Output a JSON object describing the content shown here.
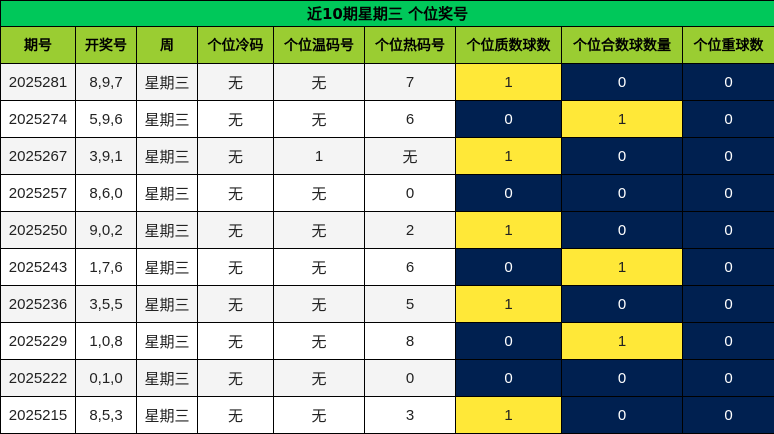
{
  "title": "近10期星期三 个位奖号",
  "headers": [
    "期号",
    "开奖号",
    "周",
    "个位冷码",
    "个位温码号",
    "个位热码号",
    "个位质数球数",
    "个位合数球数量",
    "个位重球数"
  ],
  "colors": {
    "title_bg": "#00c85a",
    "header_bg": "#9acd32",
    "highlight": "#ffe838",
    "dark": "#002050"
  },
  "rows": [
    {
      "cells": [
        "2025281",
        "8,9,7",
        "星期三",
        "无",
        "无",
        "7",
        "1",
        "0",
        "0"
      ],
      "hl": [
        1,
        0,
        0
      ]
    },
    {
      "cells": [
        "2025274",
        "5,9,6",
        "星期三",
        "无",
        "无",
        "6",
        "0",
        "1",
        "0"
      ],
      "hl": [
        0,
        1,
        0
      ]
    },
    {
      "cells": [
        "2025267",
        "3,9,1",
        "星期三",
        "无",
        "1",
        "无",
        "1",
        "0",
        "0"
      ],
      "hl": [
        1,
        0,
        0
      ]
    },
    {
      "cells": [
        "2025257",
        "8,6,0",
        "星期三",
        "无",
        "无",
        "0",
        "0",
        "0",
        "0"
      ],
      "hl": [
        0,
        0,
        0
      ]
    },
    {
      "cells": [
        "2025250",
        "9,0,2",
        "星期三",
        "无",
        "无",
        "2",
        "1",
        "0",
        "0"
      ],
      "hl": [
        1,
        0,
        0
      ]
    },
    {
      "cells": [
        "2025243",
        "1,7,6",
        "星期三",
        "无",
        "无",
        "6",
        "0",
        "1",
        "0"
      ],
      "hl": [
        0,
        1,
        0
      ]
    },
    {
      "cells": [
        "2025236",
        "3,5,5",
        "星期三",
        "无",
        "无",
        "5",
        "1",
        "0",
        "0"
      ],
      "hl": [
        1,
        0,
        0
      ]
    },
    {
      "cells": [
        "2025229",
        "1,0,8",
        "星期三",
        "无",
        "无",
        "8",
        "0",
        "1",
        "0"
      ],
      "hl": [
        0,
        1,
        0
      ]
    },
    {
      "cells": [
        "2025222",
        "0,1,0",
        "星期三",
        "无",
        "无",
        "0",
        "0",
        "0",
        "0"
      ],
      "hl": [
        0,
        0,
        0
      ]
    },
    {
      "cells": [
        "2025215",
        "8,5,3",
        "星期三",
        "无",
        "无",
        "3",
        "1",
        "0",
        "0"
      ],
      "hl": [
        1,
        0,
        0
      ]
    }
  ]
}
